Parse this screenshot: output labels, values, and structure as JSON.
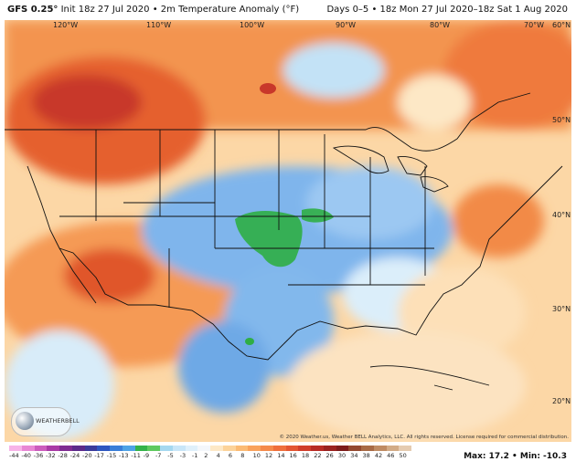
{
  "header": {
    "model": "GFS 0.25°",
    "init": "Init 18z 27 Jul 2020",
    "separator": "•",
    "variable": "2m Temperature Anomaly (°F)",
    "valid": "Days 0–5 • 18z Mon 27 Jul 2020–18z Sat 1 Aug 2020"
  },
  "map": {
    "lon_labels": [
      "120°W",
      "110°W",
      "100°W",
      "90°W",
      "80°W",
      "70°W",
      "60°N"
    ],
    "lat_labels": [
      "50°N",
      "40°N",
      "30°N",
      "20°N"
    ],
    "logo_text": "WEATHERBELL",
    "credit": "© 2020 Weather.us, Weather BELL Analytics, LLC. All rights reserved. License required for commercial distribution."
  },
  "legend": {
    "ticks": [
      "-44",
      "-40",
      "-36",
      "-32",
      "-28",
      "-24",
      "-20",
      "-17",
      "-15",
      "-13",
      "-11",
      "-9",
      "-7",
      "-5",
      "-3",
      "-1",
      "2",
      "4",
      "6",
      "8",
      "10",
      "12",
      "14",
      "16",
      "18",
      "22",
      "26",
      "30",
      "34",
      "38",
      "42",
      "46",
      "50"
    ],
    "colors": [
      "#f7b3e8",
      "#e887d4",
      "#cc5cbd",
      "#a93aa6",
      "#7f2b91",
      "#5c2a8a",
      "#3b3b9b",
      "#2e56c0",
      "#3a7ed8",
      "#4ea3e6",
      "#34b34a",
      "#5fc95f",
      "#a5d8f0",
      "#c8e6f8",
      "#dff0fb",
      "#f4f7fb",
      "#fde8c6",
      "#fcd39a",
      "#fbbb75",
      "#f9a25c",
      "#f58a4b",
      "#ef6f3c",
      "#e35532",
      "#d03d2b",
      "#b82b25",
      "#9a2220",
      "#7c1b1b",
      "#93482f",
      "#a86a45",
      "#bf8b63",
      "#d2ab86",
      "#e5cbb0"
    ],
    "stats_text": "Max: 17.2 • Min: -10.3"
  }
}
